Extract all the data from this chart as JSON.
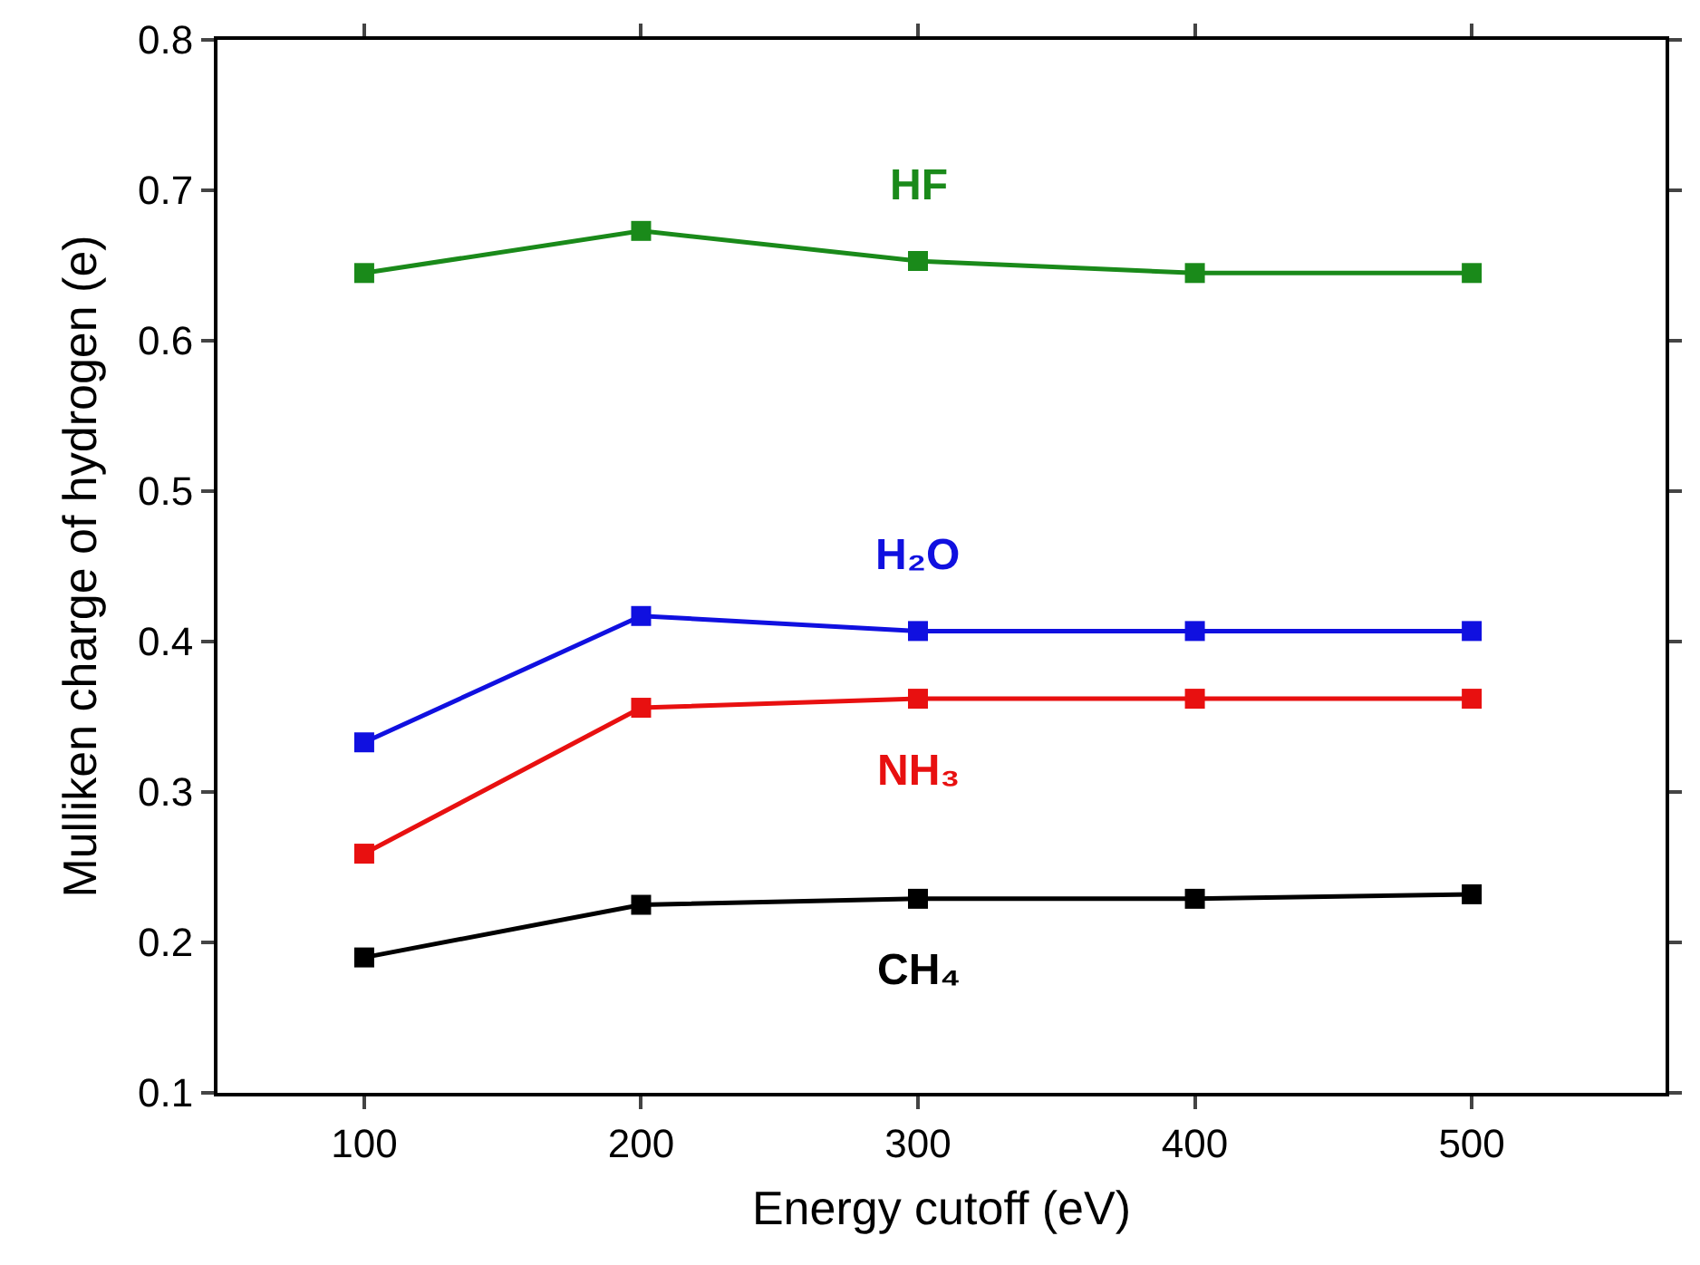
{
  "chart_data": {
    "type": "line",
    "xlabel": "Energy cutoff (eV)",
    "ylabel": "Mulliken charge of hydrogen (e)",
    "x": [
      100,
      200,
      300,
      400,
      500
    ],
    "series": [
      {
        "name": "HF",
        "color": "#1a8a1a",
        "values": [
          0.645,
          0.673,
          0.653,
          0.645,
          0.645
        ]
      },
      {
        "name": "H₂O",
        "color": "#1010e0",
        "values": [
          0.333,
          0.417,
          0.407,
          0.407,
          0.407
        ]
      },
      {
        "name": "NH₃",
        "color": "#e81010",
        "values": [
          0.259,
          0.356,
          0.362,
          0.362,
          0.362
        ]
      },
      {
        "name": "CH₄",
        "color": "#000000",
        "values": [
          0.19,
          0.225,
          0.229,
          0.229,
          0.232
        ]
      }
    ],
    "xlim": [
      47,
      570
    ],
    "xticks": [
      100,
      200,
      300,
      400,
      500
    ],
    "ylim": [
      0.1,
      0.8
    ],
    "yticks": [
      0.1,
      0.2,
      0.3,
      0.4,
      0.5,
      0.6,
      0.7,
      0.8
    ],
    "marker": "square",
    "line_style": "solid",
    "legend": false
  }
}
